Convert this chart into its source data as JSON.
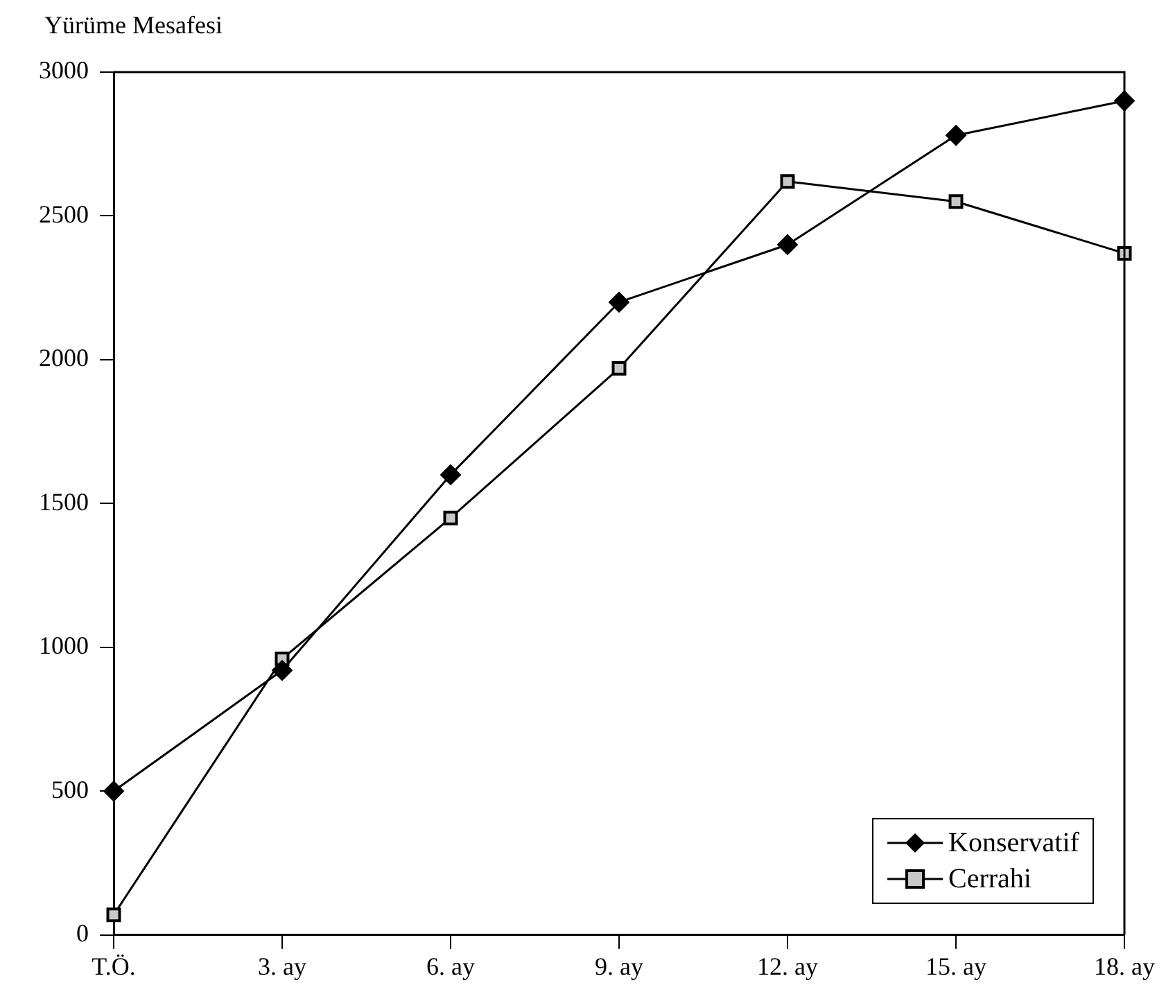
{
  "chart_data": {
    "type": "line",
    "ylabel": "Yürüme Mesafesi",
    "categories": [
      "T.Ö.",
      "3. ay",
      "6. ay",
      "9. ay",
      "12. ay",
      "15. ay",
      "18. ay"
    ],
    "series": [
      {
        "name": "Konservatif",
        "color": "#000000",
        "marker": "diamond",
        "values": [
          500,
          920,
          1600,
          2200,
          2400,
          2780,
          2900
        ]
      },
      {
        "name": "Cerrahi",
        "color": "#000000",
        "marker": "square",
        "values": [
          70,
          960,
          1450,
          1970,
          2620,
          2550,
          2370
        ]
      }
    ],
    "ylim": [
      0,
      3000
    ],
    "yticks": [
      0,
      500,
      1000,
      1500,
      2000,
      2500,
      3000
    ],
    "grid": false,
    "legend": "bottom right",
    "line_style": "solid"
  }
}
